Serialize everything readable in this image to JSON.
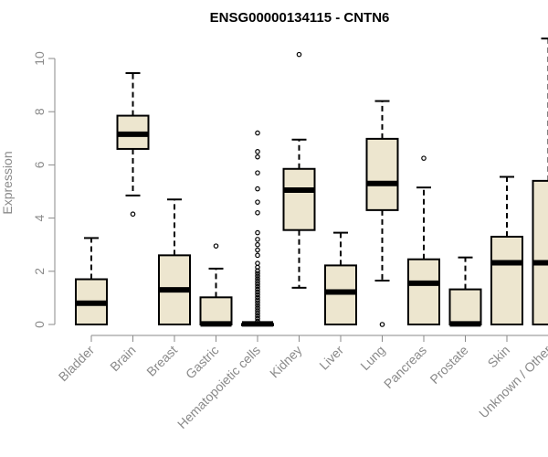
{
  "chart_data": {
    "type": "boxplot",
    "title": "ENSG00000134115 - CNTN6",
    "ylabel": "Expression",
    "xlabel": "",
    "ylim": [
      0,
      10.8
    ],
    "yticks": [
      0,
      2,
      4,
      6,
      8,
      10
    ],
    "grid": false,
    "legend": "none",
    "colors": {
      "box_fill": "#ede6cf",
      "box_stroke": "#000000",
      "median": "#000000",
      "axis": "#8a8a8a"
    },
    "categories": [
      "Bladder",
      "Brain",
      "Breast",
      "Gastric",
      "Hematopoietic cells",
      "Kidney",
      "Liver",
      "Lung",
      "Pancreas",
      "Prostate",
      "Skin",
      "Unknown / Other"
    ],
    "boxes": [
      {
        "name": "Bladder",
        "whisker_low": 0,
        "q1": 0,
        "median": 0.8,
        "q3": 1.7,
        "whisker_high": 3.25,
        "outliers": []
      },
      {
        "name": "Brain",
        "whisker_low": 4.85,
        "q1": 6.6,
        "median": 7.15,
        "q3": 7.85,
        "whisker_high": 9.45,
        "outliers": [
          4.15
        ]
      },
      {
        "name": "Breast",
        "whisker_low": 0,
        "q1": 0,
        "median": 1.3,
        "q3": 2.6,
        "whisker_high": 4.7,
        "outliers": []
      },
      {
        "name": "Gastric",
        "whisker_low": 0,
        "q1": 0,
        "median": 0.02,
        "q3": 1.02,
        "whisker_high": 2.1,
        "outliers": [
          2.95
        ]
      },
      {
        "name": "Hematopoietic cells",
        "whisker_low": 0,
        "q1": 0,
        "median": 0.02,
        "q3": 0.02,
        "whisker_high": 0.02,
        "outliers": [
          0.12,
          0.22,
          0.32,
          0.42,
          0.52,
          0.62,
          0.72,
          0.82,
          0.92,
          1.02,
          1.12,
          1.22,
          1.32,
          1.42,
          1.52,
          1.62,
          1.72,
          1.82,
          1.92,
          2.02,
          2.15,
          2.3,
          2.6,
          2.8,
          3.0,
          3.2,
          3.45,
          4.2,
          4.6,
          5.1,
          5.7,
          6.3,
          6.5,
          7.2
        ]
      },
      {
        "name": "Kidney",
        "whisker_low": 1.38,
        "q1": 3.55,
        "median": 5.05,
        "q3": 5.85,
        "whisker_high": 6.95,
        "outliers": [
          10.15
        ]
      },
      {
        "name": "Liver",
        "whisker_low": 0,
        "q1": 0,
        "median": 1.22,
        "q3": 2.22,
        "whisker_high": 3.45,
        "outliers": []
      },
      {
        "name": "Lung",
        "whisker_low": 1.65,
        "q1": 4.3,
        "median": 5.3,
        "q3": 6.98,
        "whisker_high": 8.4,
        "outliers": [
          0
        ]
      },
      {
        "name": "Pancreas",
        "whisker_low": 0,
        "q1": 0,
        "median": 1.55,
        "q3": 2.45,
        "whisker_high": 5.15,
        "outliers": [
          6.25
        ]
      },
      {
        "name": "Prostate",
        "whisker_low": 0,
        "q1": 0,
        "median": 0.02,
        "q3": 1.32,
        "whisker_high": 2.52,
        "outliers": []
      },
      {
        "name": "Skin",
        "whisker_low": 0,
        "q1": 0,
        "median": 2.32,
        "q3": 3.3,
        "whisker_high": 5.55,
        "outliers": []
      },
      {
        "name": "Unknown / Other",
        "whisker_low": 0,
        "q1": 0,
        "median": 2.32,
        "q3": 5.4,
        "whisker_high": 10.75,
        "outliers": []
      }
    ]
  }
}
